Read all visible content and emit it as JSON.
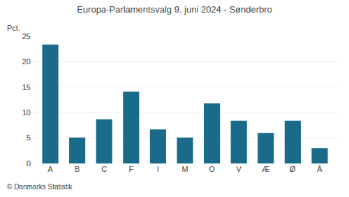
{
  "chart_data": {
    "type": "bar",
    "title": "Europa-Parlamentsvalg 9. juni 2024 - Sønderbro",
    "ylabel": "Pct.",
    "annotations": [
      "© Danmarks Statistik"
    ],
    "categories": [
      "A",
      "B",
      "C",
      "F",
      "I",
      "M",
      "O",
      "V",
      "Æ",
      "Ø",
      "Å"
    ],
    "values": [
      23.4,
      5.1,
      8.7,
      14.1,
      6.7,
      5.1,
      11.8,
      8.4,
      6.0,
      8.4,
      3.0
    ],
    "color": "#1a6b8a",
    "ylim": [
      0,
      25
    ],
    "yticks": [
      0,
      5,
      10,
      15,
      20,
      25
    ],
    "grid": true
  }
}
